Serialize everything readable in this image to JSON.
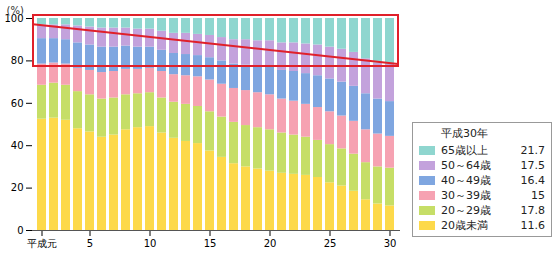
{
  "chart_data": {
    "type": "bar",
    "stacked": true,
    "y_label": "(%)",
    "categories": [
      "平成元",
      null,
      null,
      null,
      "5",
      null,
      null,
      null,
      null,
      "10",
      null,
      null,
      null,
      null,
      "15",
      null,
      null,
      null,
      null,
      "20",
      null,
      null,
      null,
      null,
      "25",
      null,
      null,
      null,
      null,
      "30"
    ],
    "series": [
      {
        "name": "20歳未満",
        "color": "#fdd94a",
        "values": [
          52.5,
          53.0,
          52.0,
          48.0,
          46.5,
          44.0,
          45.0,
          47.5,
          48.5,
          49.0,
          46.0,
          43.5,
          42.0,
          41.0,
          37.5,
          34.5,
          31.5,
          30.0,
          29.0,
          28.0,
          27.0,
          26.5,
          26.0,
          25.0,
          22.5,
          21.0,
          18.5,
          14.5,
          12.5,
          11.6
        ]
      },
      {
        "name": "20～29歳",
        "color": "#c6de67",
        "values": [
          16.0,
          16.5,
          16.5,
          17.5,
          17.5,
          18.0,
          17.5,
          16.5,
          16.0,
          16.0,
          16.5,
          17.0,
          17.5,
          17.5,
          18.5,
          19.0,
          19.5,
          19.5,
          19.5,
          19.5,
          19.0,
          18.5,
          18.0,
          17.5,
          18.0,
          17.5,
          17.5,
          17.5,
          17.5,
          17.8
        ]
      },
      {
        "name": "30～39歳",
        "color": "#f6a2b2",
        "values": [
          10.0,
          9.5,
          10.0,
          11.0,
          11.5,
          12.5,
          12.5,
          12.0,
          11.5,
          11.5,
          12.5,
          13.0,
          13.5,
          14.0,
          15.0,
          15.5,
          16.0,
          16.5,
          16.5,
          16.5,
          16.0,
          16.0,
          15.5,
          15.5,
          15.5,
          15.5,
          15.5,
          15.5,
          15.5,
          15.0
        ]
      },
      {
        "name": "40～49歳",
        "color": "#7fa6e0",
        "values": [
          12.0,
          11.5,
          11.5,
          12.0,
          12.0,
          12.0,
          11.5,
          11.0,
          10.5,
          10.0,
          10.0,
          10.0,
          10.0,
          10.0,
          10.5,
          11.0,
          11.5,
          12.0,
          12.5,
          13.0,
          13.5,
          14.0,
          14.5,
          15.0,
          15.5,
          16.0,
          16.5,
          17.0,
          16.5,
          16.4
        ]
      },
      {
        "name": "50～64歳",
        "color": "#c3a2dc",
        "values": [
          6.5,
          6.5,
          7.0,
          8.0,
          8.5,
          9.0,
          9.0,
          8.5,
          8.5,
          8.5,
          9.0,
          9.5,
          10.0,
          10.0,
          10.5,
          11.0,
          11.5,
          12.0,
          12.0,
          12.5,
          13.0,
          13.5,
          14.0,
          14.5,
          15.0,
          15.5,
          16.0,
          16.5,
          17.0,
          17.5
        ]
      },
      {
        "name": "65歳以上",
        "color": "#8fd6cf",
        "values": [
          3.0,
          3.0,
          3.0,
          3.5,
          4.0,
          4.5,
          4.5,
          4.5,
          5.0,
          5.0,
          6.0,
          7.0,
          7.0,
          7.5,
          8.0,
          9.0,
          10.0,
          10.0,
          10.5,
          10.5,
          11.5,
          11.5,
          12.0,
          12.5,
          13.5,
          14.5,
          16.0,
          19.0,
          21.0,
          21.7
        ]
      }
    ],
    "ylim": [
      0,
      100
    ],
    "yticks": [
      0,
      20,
      40,
      60,
      80,
      100
    ],
    "legend": "right",
    "legend_title": "平成30年"
  }
}
